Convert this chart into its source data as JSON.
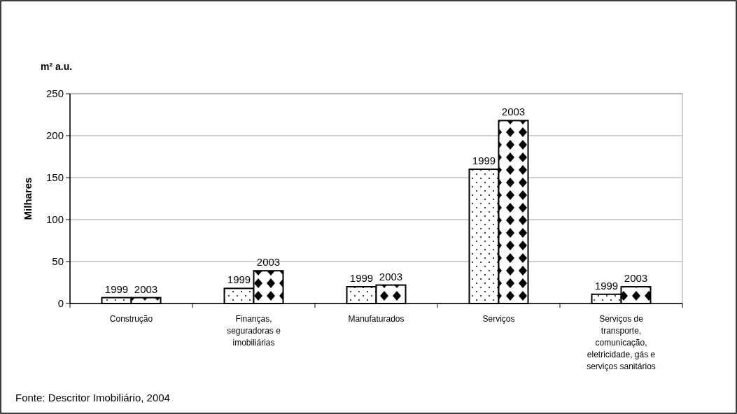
{
  "chart_data": {
    "type": "bar",
    "categories": [
      "Construção",
      "Finanças, seguradoras e imobiliárias",
      "Manufaturados",
      "Serviços",
      "Serviços de transporte, comunicação, eletricidade, gás e serviços sanitários"
    ],
    "series": [
      {
        "name": "1999",
        "color": "#000000",
        "values": [
          7,
          18,
          20,
          160,
          11
        ]
      },
      {
        "name": "2003",
        "color": "#000000",
        "values": [
          7,
          39,
          22,
          218,
          20
        ]
      }
    ],
    "ylabel": "Milhares",
    "ylim": [
      0,
      250
    ],
    "yticks": [
      0,
      50,
      100,
      150,
      200,
      250
    ],
    "grid": "y",
    "annotations": [
      "m² a.u.",
      "Fonte: Descritor Imobiliário, 2004"
    ]
  }
}
